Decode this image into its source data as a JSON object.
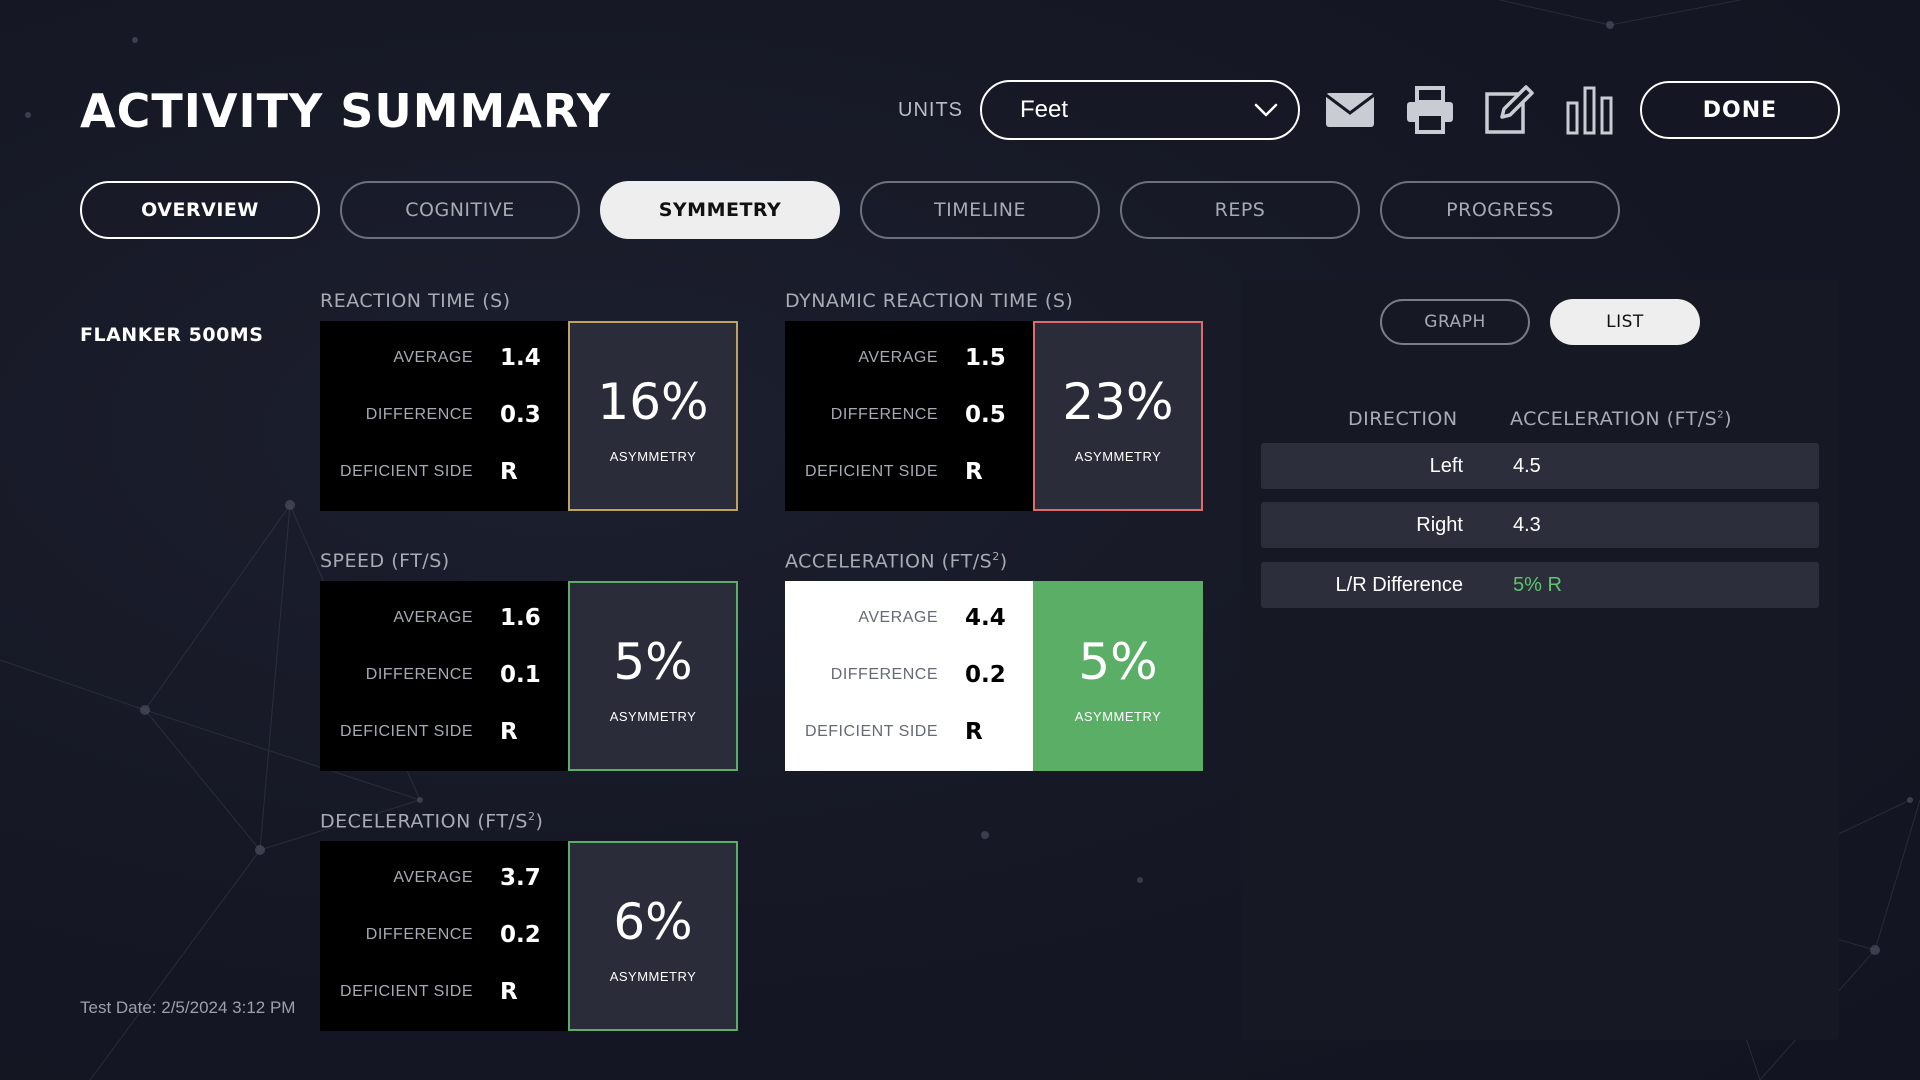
{
  "header": {
    "title": "ACTIVITY SUMMARY",
    "units_label": "UNITS",
    "units_value": "Feet",
    "done_label": "DONE",
    "icons": [
      "mail-icon",
      "print-icon",
      "edit-icon",
      "bar-chart-icon"
    ]
  },
  "tabs": [
    {
      "label": "OVERVIEW"
    },
    {
      "label": "COGNITIVE"
    },
    {
      "label": "SYMMETRY",
      "active": true
    },
    {
      "label": "TIMELINE"
    },
    {
      "label": "REPS"
    },
    {
      "label": "PROGRESS"
    }
  ],
  "activity": {
    "name": "FLANKER 500MS",
    "test_date": "Test Date: 2/5/2024 3:12 PM"
  },
  "metric_labels": {
    "average": "AVERAGE",
    "difference": "DIFFERENCE",
    "deficient_side": "DEFICIENT SIDE",
    "asymmetry": "ASYMMETRY"
  },
  "metrics": {
    "reaction_time": {
      "title": "REACTION TIME (S)",
      "average": "1.4",
      "difference": "0.3",
      "deficient": "R",
      "asymmetry": "16%",
      "border_color": "#bfa35c"
    },
    "dynamic_reaction_time": {
      "title": "DYNAMIC REACTION TIME (S)",
      "average": "1.5",
      "difference": "0.5",
      "deficient": "R",
      "asymmetry": "23%",
      "border_color": "#e06b6b"
    },
    "speed": {
      "title": "SPEED (FT/S)",
      "average": "1.6",
      "difference": "0.1",
      "deficient": "R",
      "asymmetry": "5%",
      "border_color": "#5aae66"
    },
    "acceleration": {
      "title": "ACCELERATION (FT/S",
      "title_sup": "2",
      "title_end": ")",
      "average": "4.4",
      "difference": "0.2",
      "deficient": "R",
      "asymmetry": "5%",
      "border_color": "#5aae66"
    },
    "deceleration": {
      "title": "DECELERATION (FT/S",
      "title_sup": "2",
      "title_end": ")",
      "average": "3.7",
      "difference": "0.2",
      "deficient": "R",
      "asymmetry": "6%",
      "border_color": "#5aae66"
    }
  },
  "detail_panel": {
    "graph_label": "GRAPH",
    "list_label": "LIST",
    "col_direction": "DIRECTION",
    "col_acceleration": "ACCELERATION (FT/S",
    "col_acceleration_sup": "2",
    "col_acceleration_end": ")",
    "rows": [
      {
        "direction": "Left",
        "value": "4.5"
      },
      {
        "direction": "Right",
        "value": "4.3"
      },
      {
        "direction": "L/R Difference",
        "value": "5% R"
      }
    ],
    "good_color": "#5ec46e"
  }
}
